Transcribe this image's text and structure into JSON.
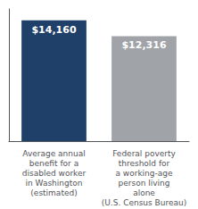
{
  "chart_data": {
    "type": "bar",
    "categories": [
      "Average annual\nbenefit for a\ndisabled worker\nin Washington\n(estimated)",
      "Federal poverty\nthreshold for\na working-age\nperson living\nalone\n(U.S. Census Bureau)"
    ],
    "values": [
      14160,
      12316
    ],
    "value_labels": [
      "$14,160",
      "$12,316"
    ],
    "colors": [
      "#1F4068",
      "#A0A3A8"
    ],
    "ylim": [
      0,
      15500
    ],
    "yticks": [],
    "grid": false,
    "data_labels": true,
    "tick_labels": "x"
  }
}
